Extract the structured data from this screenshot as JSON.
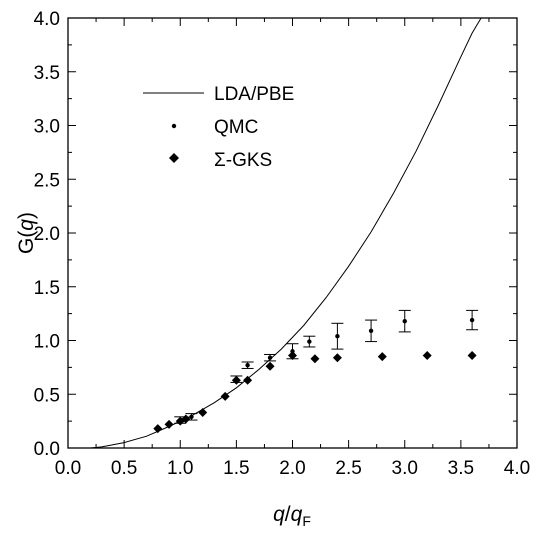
{
  "chart_data": {
    "type": "scatter",
    "xlabel": {
      "main": "q",
      "sep": "/",
      "sub_main": "q",
      "subscript": "F"
    },
    "ylabel": {
      "prefix": "G(",
      "var": "q",
      "suffix": ")"
    },
    "xlim": [
      0.0,
      4.0
    ],
    "ylim": [
      0.0,
      4.0
    ],
    "x_ticks": [
      "0.0",
      "0.5",
      "1.0",
      "1.5",
      "2.0",
      "2.5",
      "3.0",
      "3.5",
      "4.0"
    ],
    "y_ticks": [
      "0.0",
      "0.5",
      "1.0",
      "1.5",
      "2.0",
      "2.5",
      "3.0",
      "3.5",
      "4.0"
    ],
    "legend_position": "upper-left",
    "series": [
      {
        "name": "LDA/PBE",
        "kind": "line",
        "color": "#000000",
        "points": [
          [
            0.0,
            0.0
          ],
          [
            0.2,
            0.0
          ],
          [
            0.3,
            0.01
          ],
          [
            0.5,
            0.05
          ],
          [
            0.7,
            0.11
          ],
          [
            0.9,
            0.2
          ],
          [
            1.1,
            0.3
          ],
          [
            1.3,
            0.42
          ],
          [
            1.5,
            0.56
          ],
          [
            1.7,
            0.73
          ],
          [
            1.9,
            0.92
          ],
          [
            2.1,
            1.14
          ],
          [
            2.3,
            1.4
          ],
          [
            2.5,
            1.69
          ],
          [
            2.7,
            2.01
          ],
          [
            2.9,
            2.37
          ],
          [
            3.1,
            2.76
          ],
          [
            3.3,
            3.19
          ],
          [
            3.5,
            3.64
          ],
          [
            3.6,
            3.86
          ],
          [
            3.68,
            4.0
          ]
        ]
      },
      {
        "name": "QMC",
        "kind": "points-with-errorbars",
        "color": "#000000",
        "points": [
          {
            "x": 1.0,
            "y": 0.26,
            "err": 0.03
          },
          {
            "x": 1.1,
            "y": 0.29,
            "err": 0.03
          },
          {
            "x": 1.5,
            "y": 0.64,
            "err": 0.03
          },
          {
            "x": 1.6,
            "y": 0.77,
            "err": 0.03
          },
          {
            "x": 1.8,
            "y": 0.84,
            "err": 0.03
          },
          {
            "x": 2.0,
            "y": 0.9,
            "err": 0.07
          },
          {
            "x": 2.15,
            "y": 0.99,
            "err": 0.05
          },
          {
            "x": 2.4,
            "y": 1.04,
            "err": 0.12
          },
          {
            "x": 2.7,
            "y": 1.09,
            "err": 0.1
          },
          {
            "x": 3.0,
            "y": 1.18,
            "err": 0.1
          },
          {
            "x": 3.6,
            "y": 1.19,
            "err": 0.09
          }
        ]
      },
      {
        "name": "Σ-GKS",
        "kind": "diamonds",
        "color": "#000000",
        "points": [
          [
            0.8,
            0.18
          ],
          [
            0.9,
            0.22
          ],
          [
            1.0,
            0.25
          ],
          [
            1.05,
            0.27
          ],
          [
            1.2,
            0.33
          ],
          [
            1.4,
            0.48
          ],
          [
            1.5,
            0.63
          ],
          [
            1.6,
            0.63
          ],
          [
            1.8,
            0.76
          ],
          [
            2.0,
            0.86
          ],
          [
            2.2,
            0.83
          ],
          [
            2.4,
            0.84
          ],
          [
            2.8,
            0.85
          ],
          [
            3.2,
            0.86
          ],
          [
            3.6,
            0.86
          ]
        ]
      }
    ]
  }
}
